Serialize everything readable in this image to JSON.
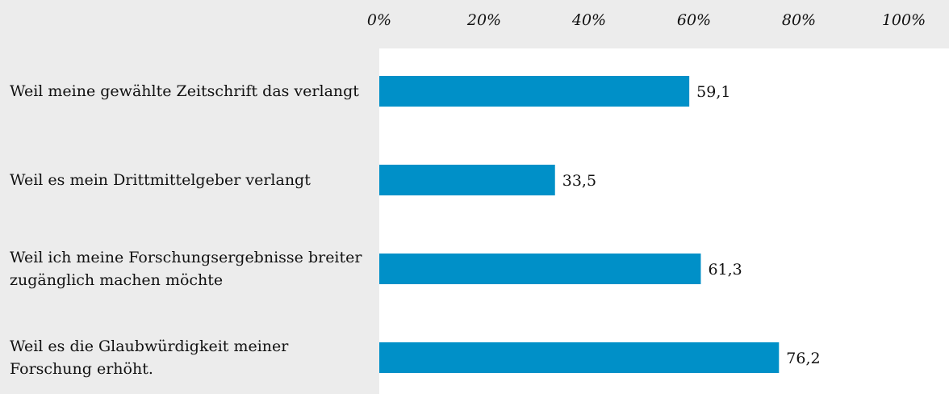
{
  "chart_data": {
    "type": "bar",
    "orientation": "horizontal",
    "categories": [
      "Weil meine gewählte Zeitschrift das verlangt",
      "Weil es mein Drittmittelgeber verlangt",
      "Weil ich meine Forschungsergebnisse breiter zugänglich machen möchte",
      "Weil es die Glaubwürdigkeit meiner Forschung erhöht."
    ],
    "values": [
      59.1,
      33.5,
      61.3,
      76.2
    ],
    "value_labels": [
      "59,1",
      "33,5",
      "61,3",
      "76,2"
    ],
    "color": "#0090c8",
    "xlim": [
      0,
      100
    ],
    "xticks": [
      {
        "value": 0,
        "label": "0%"
      },
      {
        "value": 20,
        "label": "20%"
      },
      {
        "value": 40,
        "label": "40%"
      },
      {
        "value": 60,
        "label": "60%"
      },
      {
        "value": 80,
        "label": "80%"
      },
      {
        "value": 100,
        "label": "100%"
      }
    ]
  }
}
